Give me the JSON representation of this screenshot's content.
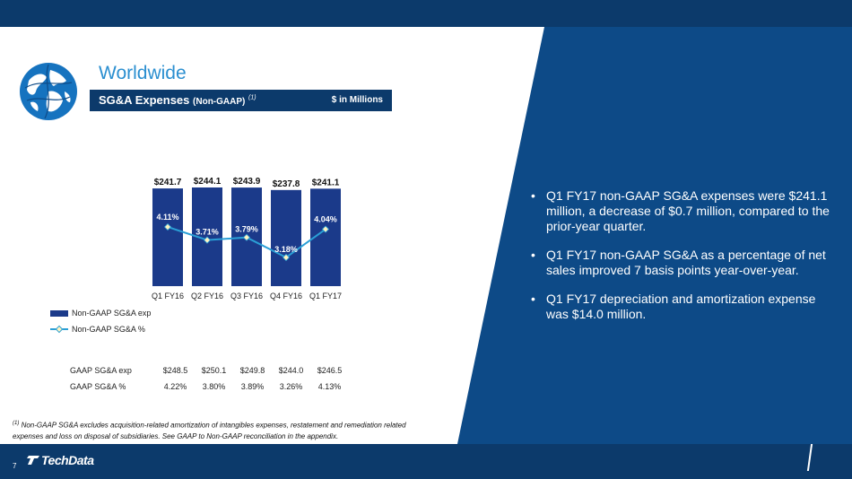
{
  "slide": {
    "title": "Worldwide",
    "banner_title": "SG&A Expenses",
    "banner_sub": "(Non-GAAP)",
    "banner_note": "(1)",
    "banner_unit": "$ in Millions",
    "page_number": "7",
    "logo_text": "TechData"
  },
  "chart_data": {
    "type": "bar",
    "categories": [
      "Q1 FY16",
      "Q2 FY16",
      "Q3 FY16",
      "Q4 FY16",
      "Q1 FY17"
    ],
    "series": [
      {
        "name": "Non-GAAP SG&A exp",
        "type": "bar",
        "values": [
          241.7,
          244.1,
          243.9,
          237.8,
          241.1
        ],
        "labels": [
          "$241.7",
          "$244.1",
          "$243.9",
          "$237.8",
          "$241.1"
        ],
        "color": "#1b3a8a"
      },
      {
        "name": "Non-GAAP SG&A %",
        "type": "line",
        "values": [
          4.11,
          3.71,
          3.79,
          3.18,
          4.04
        ],
        "labels": [
          "4.11%",
          "3.71%",
          "3.79%",
          "3.18%",
          "4.04%"
        ],
        "color": "#2a9fd6"
      }
    ],
    "legend": [
      "Non-GAAP SG&A exp",
      "Non-GAAP SG&A %"
    ],
    "legend_position": "bottom-left"
  },
  "gaap_table": {
    "rows": [
      {
        "label": "GAAP SG&A exp",
        "values": [
          "$248.5",
          "$250.1",
          "$249.8",
          "$244.0",
          "$246.5"
        ]
      },
      {
        "label": "GAAP SG&A %",
        "values": [
          "4.22%",
          "3.80%",
          "3.89%",
          "3.26%",
          "4.13%"
        ]
      }
    ]
  },
  "footnote": {
    "marker": "(1)",
    "text": " Non-GAAP SG&A excludes acquisition-related amortization of intangibles expenses, restatement and remediation related expenses and loss on disposal of subsidiaries. See GAAP to Non-GAAP reconciliation in the appendix."
  },
  "bullets": [
    "Q1 FY17 non-GAAP SG&A expenses were $241.1 million, a decrease of $0.7 million, compared to the prior-year quarter.",
    "Q1 FY17 non-GAAP SG&A as a percentage of net sales improved 7 basis points year-over-year.",
    "Q1 FY17 depreciation and amortization expense was $14.0 million."
  ]
}
